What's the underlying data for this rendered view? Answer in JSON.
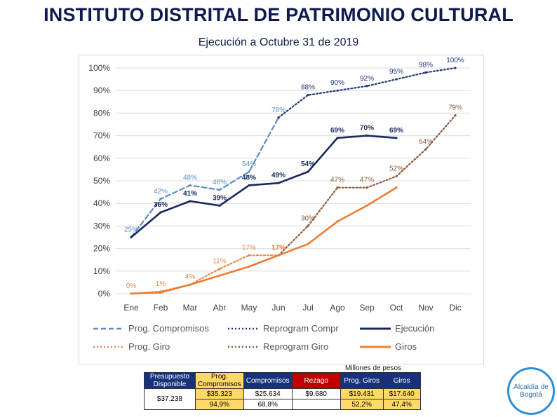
{
  "header": {
    "title": "INSTITUTO DISTRITAL DE PATRIMONIO CULTURAL",
    "subtitle": "Ejecución a Octubre 31 de  2019"
  },
  "chart_data": {
    "type": "line",
    "categories": [
      "Ene",
      "Feb",
      "Mar",
      "Abr",
      "May",
      "Jun",
      "Jul",
      "Ago",
      "Sep",
      "Oct",
      "Nov",
      "Dic"
    ],
    "ylim": [
      0,
      100
    ],
    "yticks": [
      "0%",
      "10%",
      "20%",
      "30%",
      "40%",
      "50%",
      "60%",
      "70%",
      "80%",
      "90%",
      "100%"
    ],
    "grid": true,
    "legend_position": "bottom",
    "series": [
      {
        "key": "prog_compromisos",
        "name": "Prog. Compromisos",
        "color": "#5b8dc8",
        "style": "dashed",
        "values": [
          25,
          42,
          48,
          46,
          54,
          78,
          null,
          null,
          null,
          null,
          null,
          null
        ],
        "labels": [
          "25%",
          "42%",
          "48%",
          "46%",
          "54%",
          "78%",
          "",
          "",
          "",
          "",
          "",
          ""
        ]
      },
      {
        "key": "reprogram_compr",
        "name": "Reprogram Compr",
        "color": "#1f3a7a",
        "style": "dotted",
        "values": [
          null,
          null,
          null,
          null,
          null,
          78,
          88,
          90,
          92,
          95,
          98,
          100
        ],
        "labels": [
          "",
          "",
          "",
          "",
          "",
          "",
          "88%",
          "90%",
          "92%",
          "95%",
          "98%",
          "100%"
        ]
      },
      {
        "key": "ejecucion",
        "name": "Ejecución",
        "color": "#16295e",
        "style": "solid",
        "values": [
          25,
          36,
          41,
          39,
          48,
          49,
          54,
          69,
          70,
          69,
          null,
          null
        ],
        "labels": [
          "",
          "36%",
          "41%",
          "39%",
          "48%",
          "49%",
          "54%",
          "69%",
          "70%",
          "69%",
          "",
          ""
        ]
      },
      {
        "key": "prog_giro",
        "name": "Prog. Giro",
        "color": "#e98a4a",
        "style": "dotted",
        "values": [
          0,
          1,
          4,
          11,
          17,
          17,
          null,
          null,
          null,
          null,
          null,
          null
        ],
        "labels": [
          "0%",
          "1%",
          "4%",
          "11%",
          "17%",
          "17%",
          "",
          "",
          "",
          "",
          "",
          ""
        ]
      },
      {
        "key": "reprogram_giro",
        "name": "Reprogram Giro",
        "color": "#8b5a3c",
        "style": "dotted",
        "values": [
          null,
          null,
          null,
          null,
          null,
          17,
          30,
          47,
          47,
          52,
          64,
          79
        ],
        "labels": [
          "",
          "",
          "",
          "",
          "",
          "",
          "30%",
          "47%",
          "47%",
          "52%",
          "64%",
          "79%"
        ]
      },
      {
        "key": "giros",
        "name": "Giros",
        "color": "#ed7d31",
        "style": "solid",
        "values": [
          0,
          0.5,
          4,
          8,
          12,
          17,
          22,
          32,
          39,
          47,
          null,
          null
        ],
        "labels": [
          "",
          "",
          "",
          "",
          "",
          "17%",
          "",
          "",
          "",
          "",
          "",
          ""
        ]
      }
    ]
  },
  "summary_table": {
    "units_note": "Millones de pesos",
    "headers": [
      "Presupuesto Disponible",
      "Prog. Compromisos",
      "Compromisos",
      "Rezago",
      "Prog. Giros",
      "Giros"
    ],
    "disponible": "$37.238",
    "values_row": [
      "$35.323",
      "$25.634",
      "$9.680",
      "$19.431",
      "$17.640"
    ],
    "percent_row": [
      "94,9%",
      "68,8%",
      "",
      "52,2%",
      "47,4%"
    ]
  },
  "logo": {
    "line1": "Alcaldía de",
    "line2": "Bogotá"
  }
}
